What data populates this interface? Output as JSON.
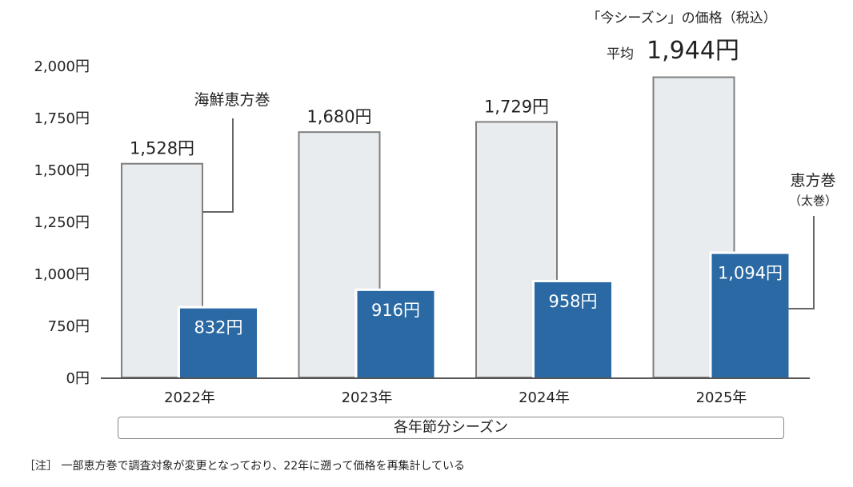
{
  "chart_data": {
    "type": "bar",
    "categories": [
      "2022年",
      "2023年",
      "2024年",
      "2025年"
    ],
    "series": [
      {
        "name": "海鮮恵方巻",
        "values": [
          1528,
          1680,
          1729,
          1944
        ],
        "labels": [
          "1,528円",
          "1,680円",
          "1,729円",
          ""
        ]
      },
      {
        "name": "恵方巻",
        "values": [
          832,
          916,
          958,
          1094
        ],
        "labels": [
          "832円",
          "916円",
          "958円",
          "1,094円"
        ]
      }
    ],
    "yticks": [
      "0円",
      "750円",
      "1,000円",
      "1,250円",
      "1,500円",
      "1,750円",
      "2,000円"
    ],
    "ylim": [
      0,
      2000
    ],
    "xlabel": "各年節分シーズン",
    "annotations": {
      "kaisen_label": "海鮮恵方巻",
      "futomaki_label": "恵方巻",
      "futomaki_sub": "（太巻）",
      "current_title": "「今シーズン」の価格（税込）",
      "avg_label": "平均",
      "avg_value": "1,944円"
    },
    "colors": {
      "kaisen_fill": "#e9ecef",
      "kaisen_stroke": "#7f7f7f",
      "futomaki_fill": "#2a69a3",
      "axis": "#555555"
    }
  },
  "note": "［注］ 一部恵方巻で調査対象が変更となっており、22年に遡って価格を再集計している"
}
